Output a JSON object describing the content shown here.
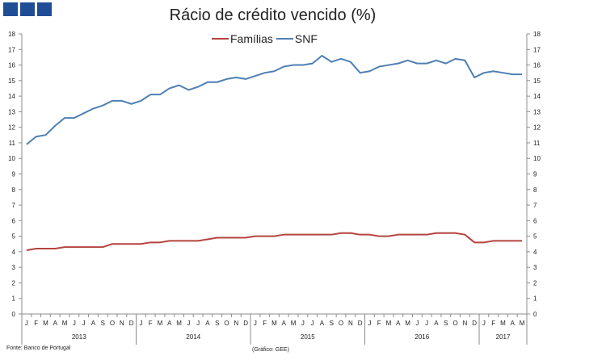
{
  "header": {
    "logo_label": "",
    "source_label": "Fonte: Banco de Portugal",
    "credit_label": "(Gráfico: GEE)"
  },
  "chart_data": {
    "type": "line",
    "title": "Rácio de crédito vencido (%)",
    "xlabel": "",
    "ylabel": "",
    "ylim": [
      0,
      18
    ],
    "yticks": [
      0,
      1,
      2,
      3,
      4,
      5,
      6,
      7,
      8,
      9,
      10,
      11,
      12,
      13,
      14,
      15,
      16,
      17,
      18
    ],
    "legend_position": "top",
    "grid": false,
    "months": [
      "J",
      "F",
      "M",
      "A",
      "M",
      "J",
      "J",
      "A",
      "S",
      "O",
      "N",
      "D",
      "J",
      "F",
      "M",
      "A",
      "M",
      "J",
      "J",
      "A",
      "S",
      "O",
      "N",
      "D",
      "J",
      "F",
      "M",
      "A",
      "M",
      "J",
      "J",
      "A",
      "S",
      "O",
      "N",
      "D",
      "J",
      "F",
      "M",
      "A",
      "M",
      "J",
      "J",
      "A",
      "S",
      "O",
      "N",
      "D",
      "J",
      "F",
      "M",
      "A",
      "M"
    ],
    "years": [
      {
        "label": "2013",
        "months": 12
      },
      {
        "label": "2014",
        "months": 12
      },
      {
        "label": "2015",
        "months": 12
      },
      {
        "label": "2016",
        "months": 12
      },
      {
        "label": "2017",
        "months": 5
      }
    ],
    "series": [
      {
        "name": "Famílias",
        "color": "#b5443f",
        "values": [
          4.1,
          4.2,
          4.2,
          4.2,
          4.3,
          4.3,
          4.3,
          4.3,
          4.3,
          4.5,
          4.5,
          4.5,
          4.5,
          4.6,
          4.6,
          4.7,
          4.7,
          4.7,
          4.7,
          4.8,
          4.9,
          4.9,
          4.9,
          4.9,
          5.0,
          5.0,
          5.0,
          5.1,
          5.1,
          5.1,
          5.1,
          5.1,
          5.1,
          5.2,
          5.2,
          5.1,
          5.1,
          5.0,
          5.0,
          5.1,
          5.1,
          5.1,
          5.1,
          5.2,
          5.2,
          5.2,
          5.1,
          4.6,
          4.6,
          4.7,
          4.7,
          4.7,
          4.7
        ]
      },
      {
        "name": "SNF",
        "color": "#4e7fb3",
        "values": [
          10.9,
          11.4,
          11.5,
          12.1,
          12.6,
          12.6,
          12.9,
          13.2,
          13.4,
          13.7,
          13.7,
          13.5,
          13.7,
          14.1,
          14.1,
          14.5,
          14.7,
          14.4,
          14.6,
          14.9,
          14.9,
          15.1,
          15.2,
          15.1,
          15.3,
          15.5,
          15.6,
          15.9,
          16.0,
          16.0,
          16.1,
          16.6,
          16.2,
          16.4,
          16.2,
          15.5,
          15.6,
          15.9,
          16.0,
          16.1,
          16.3,
          16.1,
          16.1,
          16.3,
          16.1,
          16.4,
          16.3,
          15.2,
          15.5,
          15.6,
          15.5,
          15.4,
          15.4
        ]
      }
    ]
  }
}
